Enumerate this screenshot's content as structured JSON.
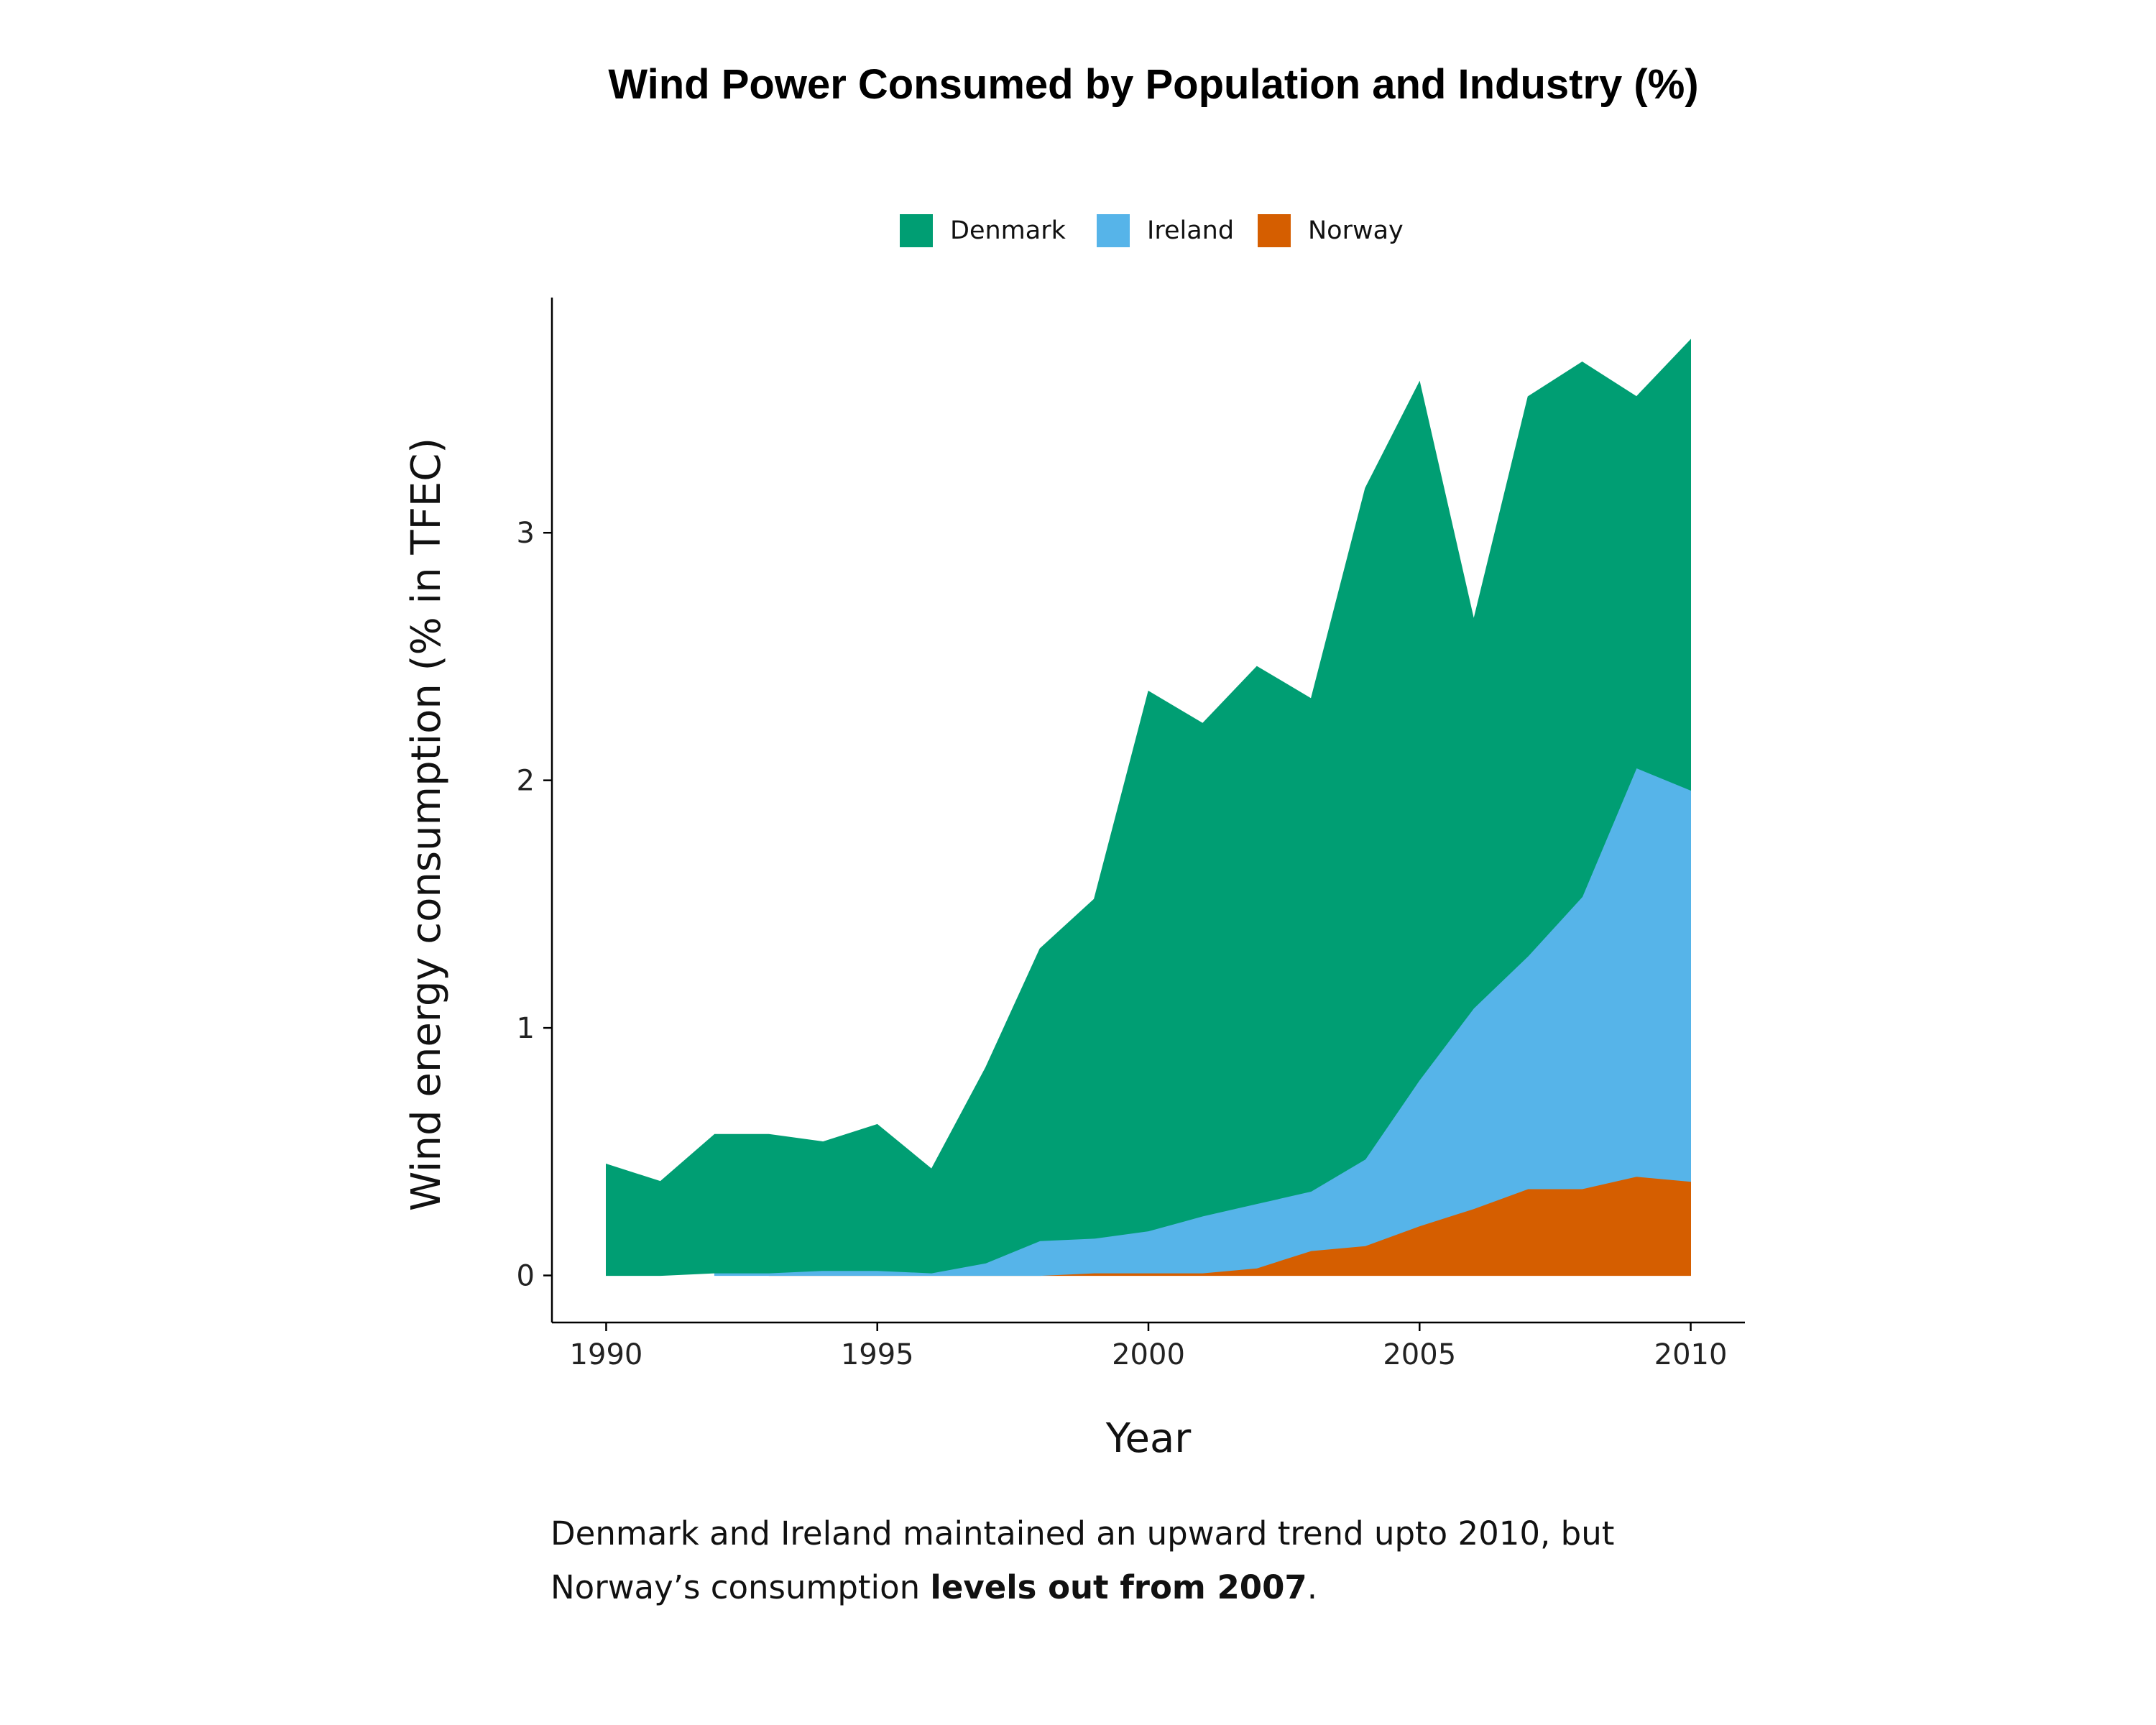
{
  "chart_data": {
    "type": "area",
    "stacked": true,
    "title": "Wind Power Consumed by Population and Industry (%)",
    "xlabel": "Year",
    "ylabel": "Wind energy consumption (% in TFEC)",
    "xlim": [
      1989,
      2011
    ],
    "ylim": [
      -0.19,
      3.95
    ],
    "x_ticks": [
      1990,
      1995,
      2000,
      2005,
      2010
    ],
    "y_ticks": [
      0,
      1,
      2,
      3
    ],
    "legend_position": "top",
    "grid": false,
    "series": [
      {
        "name": "Norway",
        "color": "#D55E00",
        "x": [
          1993,
          1994,
          1995,
          1996,
          1997,
          1998,
          1999,
          2000,
          2001,
          2002,
          2003,
          2004,
          2005,
          2006,
          2007,
          2008,
          2009,
          2010
        ],
        "values": [
          0.0,
          0.0,
          0.0,
          0.0,
          0.0,
          0.0,
          0.01,
          0.01,
          0.01,
          0.03,
          0.1,
          0.12,
          0.2,
          0.27,
          0.35,
          0.35,
          0.4,
          0.38
        ]
      },
      {
        "name": "Ireland",
        "color": "#56B4E9",
        "x": [
          1992,
          1993,
          1994,
          1995,
          1996,
          1997,
          1998,
          1999,
          2000,
          2001,
          2002,
          2003,
          2004,
          2005,
          2006,
          2007,
          2008,
          2009,
          2010
        ],
        "values": [
          0.01,
          0.01,
          0.02,
          0.02,
          0.01,
          0.05,
          0.14,
          0.14,
          0.17,
          0.23,
          0.26,
          0.24,
          0.35,
          0.59,
          0.81,
          0.94,
          1.18,
          1.65,
          1.58
        ]
      },
      {
        "name": "Denmark",
        "color": "#009E73",
        "x": [
          1990,
          1991,
          1992,
          1993,
          1994,
          1995,
          1996,
          1997,
          1998,
          1999,
          2000,
          2001,
          2002,
          2003,
          2004,
          2005,
          2006,
          2007,
          2008,
          2009,
          2010
        ],
        "values": [
          0.45,
          0.38,
          0.56,
          0.56,
          0.52,
          0.59,
          0.42,
          0.79,
          1.18,
          1.37,
          2.18,
          1.99,
          2.17,
          1.99,
          2.71,
          2.82,
          1.57,
          2.26,
          2.16,
          1.5,
          1.82
        ]
      }
    ],
    "caption": {
      "line1": "Denmark and Ireland maintained an upward trend upto 2010, but",
      "line2_prefix": "Norway’s consumption ",
      "line2_bold": "levels out from 2007",
      "line2_suffix": "."
    }
  }
}
